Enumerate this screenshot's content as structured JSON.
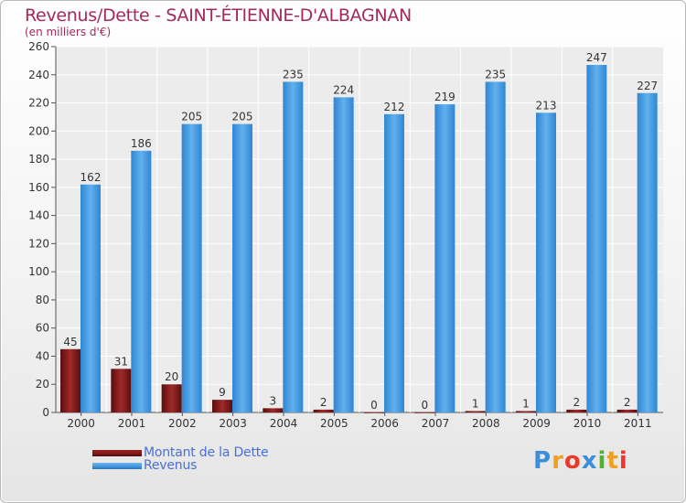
{
  "chart_data": {
    "type": "bar",
    "title": "Revenus/Dette - SAINT-ÉTIENNE-D'ALBAGNAN",
    "subtitle": "(en milliers d'€)",
    "categories": [
      "2000",
      "2001",
      "2002",
      "2003",
      "2004",
      "2005",
      "2006",
      "2007",
      "2008",
      "2009",
      "2010",
      "2011"
    ],
    "series": [
      {
        "name": "Montant de la Dette",
        "color": "#7a1a1a",
        "values": [
          45,
          31,
          20,
          9,
          3,
          2,
          0,
          0,
          1,
          1,
          2,
          2
        ]
      },
      {
        "name": "Revenus",
        "color": "#3d95dd",
        "values": [
          162,
          186,
          205,
          205,
          235,
          224,
          212,
          219,
          235,
          213,
          247,
          227
        ]
      }
    ],
    "ylim": [
      0,
      260
    ],
    "yticks": [
      0,
      20,
      40,
      60,
      80,
      100,
      120,
      140,
      160,
      180,
      200,
      220,
      240,
      260
    ],
    "grid": true,
    "legend_position": "bottom-left"
  },
  "logo": {
    "letters": [
      "P",
      "r",
      "o",
      "x",
      "i",
      "t",
      "i"
    ],
    "colors": [
      "#3a8fd8",
      "#f0a020",
      "#e8392a",
      "#3a8fd8",
      "#55b030",
      "#f0a020",
      "#e8392a"
    ]
  }
}
